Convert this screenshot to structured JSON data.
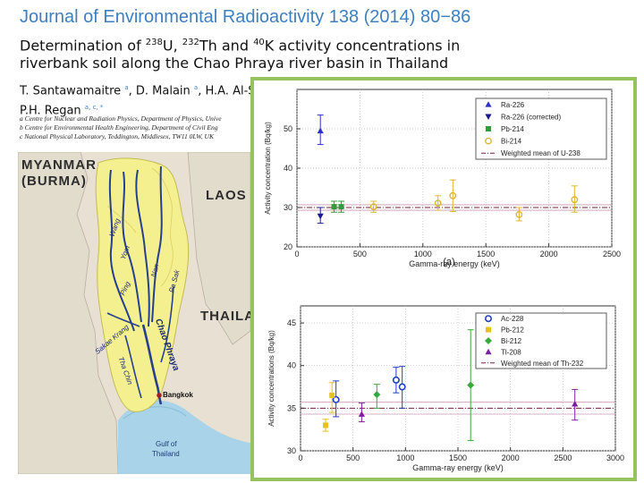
{
  "journal": "Journal of Environmental Radioactivity 138 (2014) 80−86",
  "title": {
    "t1": "Determination of ",
    "s1": "238",
    "t2": "U, ",
    "s2": "232",
    "t3": "Th and ",
    "s3": "40",
    "t4": "K activity concentrations in",
    "line2": "riverbank soil along the Chao Phraya river basin in Thailand"
  },
  "authors": {
    "a1": "T. Santawamaitre ",
    "s1": "a",
    "a2": ", D. Malain ",
    "s2": "a",
    "a3": ", H.A. Al-Su",
    "a4": "P.H. Regan ",
    "s4": "a, c, *"
  },
  "affiliations": [
    "a Centre for Nuclear and Radiation Physics, Department of Physics, Unive",
    "b Centre for Environmental Health Engineering, Department of Civil Eng",
    "c National Physical Laboratory, Teddington, Middlesex, TW11 0LW, UK"
  ],
  "map": {
    "labels": {
      "myanmar": "MYANMAR",
      "burma": "(BURMA)",
      "laos": "LAOS",
      "thailand": "THAILA",
      "gulf1": "Gulf of",
      "gulf2": "Thailand",
      "bangkok": "Bangkok"
    },
    "rivers": {
      "wang": "Wang",
      "yom": "Yom",
      "nan": "Nan",
      "ping": "Ping",
      "pasak": "Pa Sak",
      "sakae": "Sakae Krang",
      "chao": "Chao Phraya",
      "tha": "Tha Chin"
    }
  },
  "chart_data": [
    {
      "type": "scatter",
      "panel_label": "(a)",
      "xlabel": "Gamma-ray energy (keV)",
      "ylabel": "Activity concentration (Bq/kg)",
      "xlim": [
        0,
        2500
      ],
      "ylim": [
        20,
        60
      ],
      "xticks": [
        0,
        500,
        1000,
        1500,
        2000,
        2500
      ],
      "yticks": [
        20,
        30,
        40,
        50
      ],
      "ytick_labels": [
        "20",
        "30",
        "40",
        "50"
      ],
      "legend_position": "top-right",
      "weighted_mean": 30.0,
      "weighted_mean_band": [
        29.3,
        30.7
      ],
      "series": [
        {
          "name": "Ra-226",
          "color": "#3030c8",
          "marker": "triangle-up",
          "points": [
            {
              "x": 186,
              "y": 49.5,
              "lo": 46.0,
              "hi": 53.5
            }
          ]
        },
        {
          "name": "Ra-226 (corrected)",
          "color": "#1a1a8c",
          "marker": "triangle-down",
          "points": [
            {
              "x": 186,
              "y": 27.8,
              "lo": 26.0,
              "hi": 30.0
            }
          ]
        },
        {
          "name": "Pb-214",
          "color": "#2e9e3a",
          "marker": "square",
          "points": [
            {
              "x": 295,
              "y": 30.2,
              "lo": 28.8,
              "hi": 31.6
            },
            {
              "x": 352,
              "y": 30.2,
              "lo": 28.8,
              "hi": 31.6
            }
          ]
        },
        {
          "name": "Bi-214",
          "color": "#d8b830",
          "marker": "circle",
          "points": [
            {
              "x": 609,
              "y": 30.2,
              "lo": 28.8,
              "hi": 31.6
            },
            {
              "x": 1120,
              "y": 31.1,
              "lo": 29.3,
              "hi": 33.0
            },
            {
              "x": 1238,
              "y": 33.0,
              "lo": 29.0,
              "hi": 37.0
            },
            {
              "x": 1764,
              "y": 28.2,
              "lo": 26.6,
              "hi": 30.0
            },
            {
              "x": 2204,
              "y": 32.0,
              "lo": 28.8,
              "hi": 35.5
            }
          ]
        },
        {
          "name": "Weighted mean of U-238",
          "color": "#7a1f3d",
          "marker": "dashdot-line",
          "points": []
        }
      ]
    },
    {
      "type": "scatter",
      "xlabel": "Gamma-ray energy (keV)",
      "ylabel": "Activity concentrations (Bq/kg)",
      "xlim": [
        0,
        3000
      ],
      "ylim": [
        30,
        47
      ],
      "xticks": [
        0,
        500,
        1000,
        1500,
        2000,
        2500,
        3000
      ],
      "yticks": [
        30,
        35,
        40,
        45
      ],
      "legend_position": "top-right",
      "weighted_mean": 35.0,
      "weighted_mean_band": [
        34.3,
        35.7
      ],
      "series": [
        {
          "name": "Ac-228",
          "color": "#1f3fc0",
          "marker": "circle-open",
          "points": [
            {
              "x": 338,
              "y": 36.0,
              "lo": 34.0,
              "hi": 38.2
            },
            {
              "x": 911,
              "y": 38.3,
              "lo": 36.8,
              "hi": 39.8
            },
            {
              "x": 969,
              "y": 37.5,
              "lo": 35.0,
              "hi": 39.9
            }
          ]
        },
        {
          "name": "Pb-212",
          "color": "#e8c020",
          "marker": "square",
          "points": [
            {
              "x": 239,
              "y": 33.0,
              "lo": 32.3,
              "hi": 33.7
            },
            {
              "x": 300,
              "y": 36.5,
              "lo": 34.5,
              "hi": 38.0
            }
          ]
        },
        {
          "name": "Bi-212",
          "color": "#3aa83a",
          "marker": "diamond",
          "points": [
            {
              "x": 727,
              "y": 36.6,
              "lo": 35.0,
              "hi": 37.8
            },
            {
              "x": 1621,
              "y": 37.7,
              "lo": 31.2,
              "hi": 44.2
            }
          ]
        },
        {
          "name": "Tl-208",
          "color": "#7a1fa0",
          "marker": "triangle-up",
          "points": [
            {
              "x": 583,
              "y": 34.3,
              "lo": 33.4,
              "hi": 35.6
            },
            {
              "x": 2614,
              "y": 35.5,
              "lo": 33.6,
              "hi": 37.2
            }
          ]
        },
        {
          "name": "Weighted mean of Th-232",
          "color": "#7a1f3d",
          "marker": "dashdot-line",
          "points": []
        }
      ]
    }
  ]
}
